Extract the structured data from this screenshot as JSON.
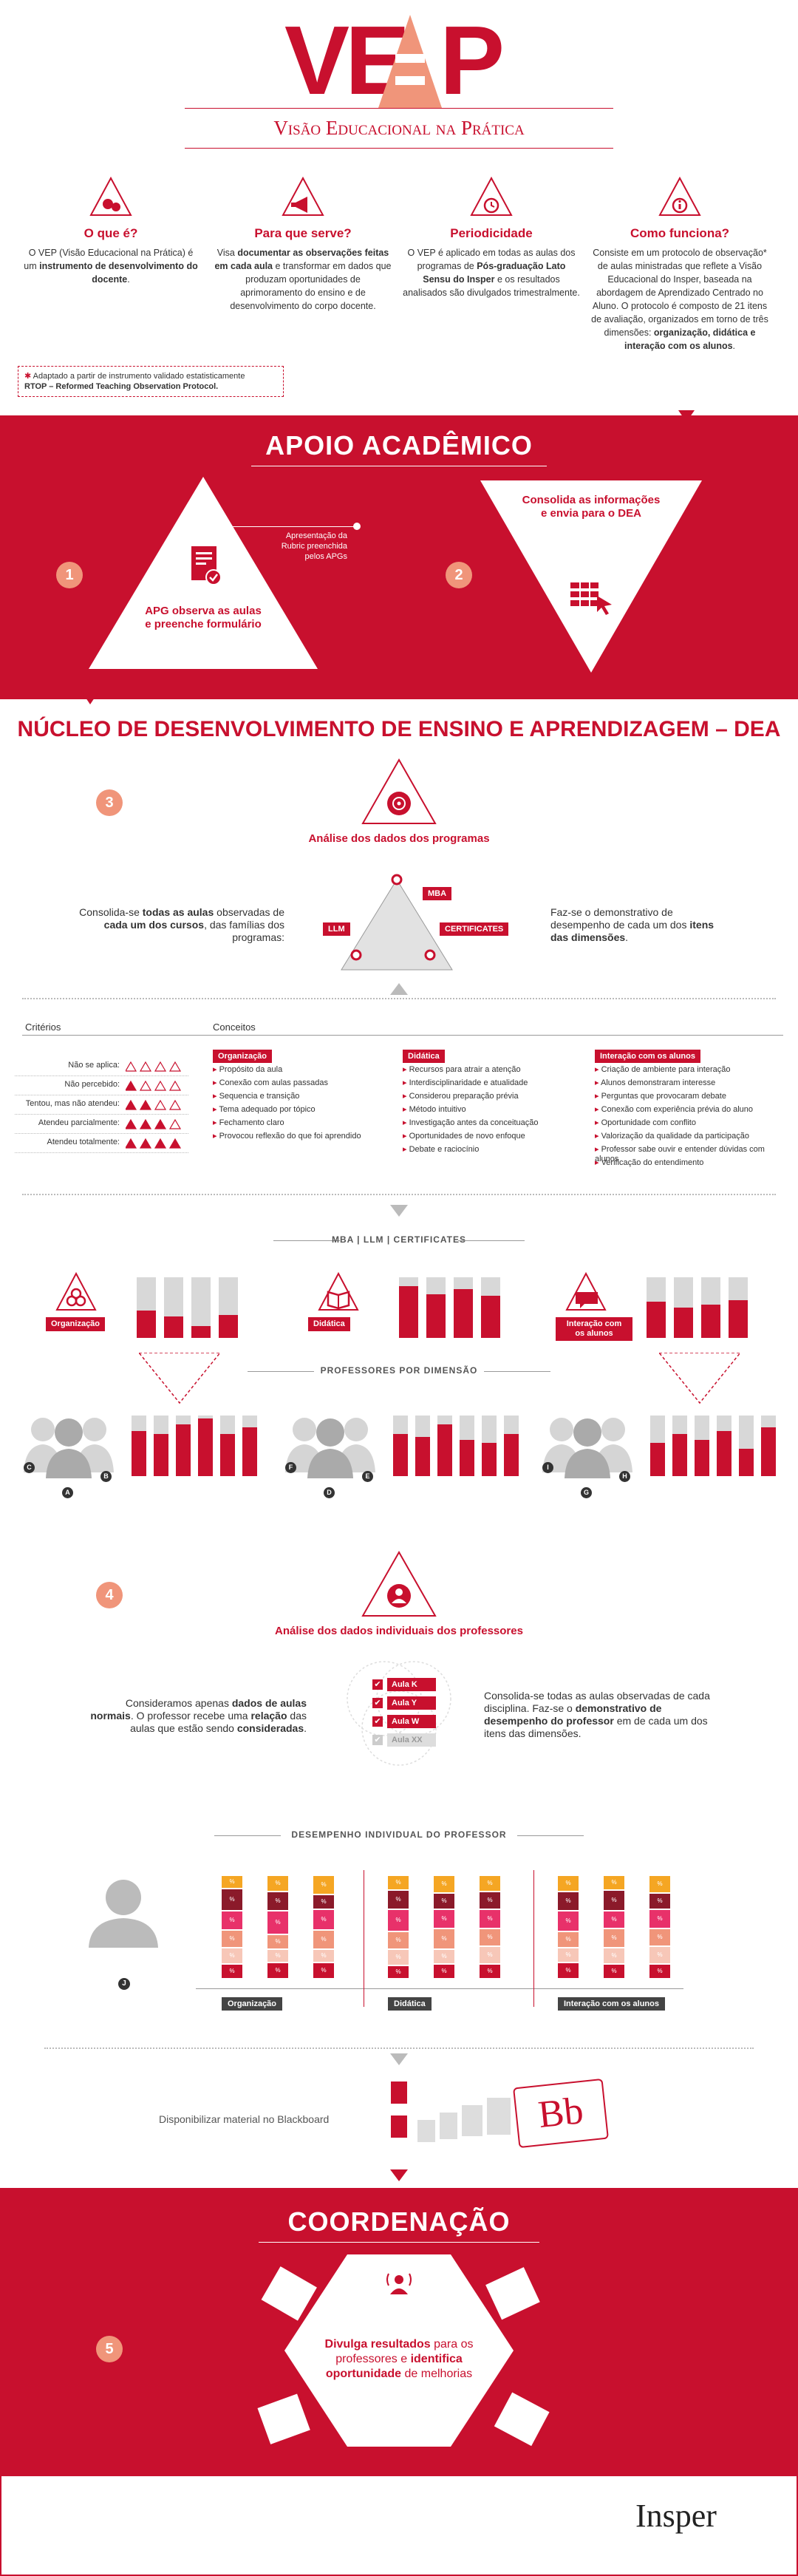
{
  "logo": {
    "letters_left": "VE",
    "letter_p": "P",
    "subtitle": "Visão Educacional na Prática"
  },
  "intro": [
    {
      "title": "O que é?",
      "text_pre": "O VEP (Visão Educacional na Prática) é um ",
      "text_bold": "instrumento de desenvolvimento do docente",
      "text_post": "."
    },
    {
      "title": "Para que serve?",
      "text_pre": "Visa ",
      "text_bold": "documentar as observações feitas em cada aula",
      "text_post": " e transformar em dados que produzam oportunidades de aprimoramento do ensino e de desenvolvimento do corpo docente."
    },
    {
      "title": "Periodicidade",
      "text_pre": "O VEP é aplicado em todas as aulas dos programas de ",
      "text_bold": "Pós-graduação Lato Sensu do Insper",
      "text_post": " e os resultados analisados são divulgados trimestralmente."
    },
    {
      "title": "Como funciona?",
      "text_pre": "Consiste em um protocolo de observação* de aulas ministradas que reflete a Visão Educacional do Insper, baseada na abordagem de Aprendizado Centrado no Aluno. O protocolo é composto de 21 itens de avaliação, organizados em torno de três dimensões: ",
      "text_bold": "organização, didática e interação com os alunos",
      "text_post": "."
    }
  ],
  "footnote": {
    "line1": "Adaptado a partir de instrumento validado estatisticamente",
    "line2": "RTOP – Reformed Teaching Observation Protocol."
  },
  "apoio": {
    "title": "Apoio Acadêmico",
    "step1_note": "Apresentação da Rubric preenchida pelos APGs",
    "step1_text": "APG observa as aulas e preenche formulário",
    "step2_text": "Consolida as informações e envia para o DEA",
    "n1": "1",
    "n2": "2"
  },
  "dea": {
    "title": "Núcleo de Desenvolvimento de Ensino e Aprendizagem – ",
    "title_bold": "DEA",
    "n3": "3",
    "step3_title": "Análise dos dados dos programas",
    "left_text_pre": "Consolida-se ",
    "left_text_bold": "todas as aulas",
    "left_text_mid": " observadas de ",
    "left_text_bold2": "cada um dos cursos",
    "left_text_post": ", das famílias dos programas:",
    "right_text_pre": "Faz-se o demonstrativo de desempenho de cada um dos ",
    "right_text_bold": "itens das dimensões",
    "right_text_post": ".",
    "tag_mba": "MBA",
    "tag_llm": "LLM",
    "tag_cert": "CERTIFICATES"
  },
  "criteria": {
    "header": "Critérios",
    "rows": [
      "Não se aplica:",
      "Não percebido:",
      "Tentou, mas não atendeu:",
      "Atendeu parcialmente:",
      "Atendeu totalmente:"
    ],
    "filled": [
      0,
      1,
      2,
      3,
      4
    ]
  },
  "concepts": {
    "header": "Conceitos",
    "columns": [
      {
        "name": "Organização",
        "items": [
          "Propósito da aula",
          "Conexão com aulas passadas",
          "Sequencia e transição",
          "Tema adequado por tópico",
          "Fechamento claro",
          "Provocou reflexão do que foi aprendido"
        ]
      },
      {
        "name": "Didática",
        "items": [
          "Recursos para atrair a atenção",
          "Interdisciplinaridade e atualidade",
          "Considerou preparação prévia",
          "Método intuitivo",
          "Investigação antes da conceituação",
          "Oportunidades de novo enfoque",
          "Debate e raciocínio"
        ]
      },
      {
        "name": "Interação com os alunos",
        "items": [
          "Criação de ambiente para interação",
          "Alunos demonstraram interesse",
          "Perguntas que provocaram debate",
          "Conexão com experiência prévia do aluno",
          "Oportunidade com conflito",
          "Valorização da qualidade da participação",
          "Professor sabe ouvir e entender dúvidas com alunos",
          "Verificação do entendimento"
        ]
      }
    ]
  },
  "programs_header": "MBA | LLM | CERTIFICATES",
  "dims": [
    {
      "label": "Organização",
      "icon": "gears-icon",
      "bars": [
        0.45,
        0.35,
        0.2,
        0.38
      ]
    },
    {
      "label": "Didática",
      "icon": "book-icon",
      "bars": [
        0.85,
        0.72,
        0.8,
        0.7
      ]
    },
    {
      "label": "Interação com os alunos",
      "icon": "chat-icon",
      "bars": [
        0.6,
        0.5,
        0.55,
        0.62
      ]
    }
  ],
  "prof_header": "Professores por dimensão",
  "prof_groups": [
    {
      "labels": [
        "C",
        "A",
        "B"
      ],
      "bars": [
        0.75,
        0.7,
        0.85,
        0.95,
        0.7,
        0.8
      ]
    },
    {
      "labels": [
        "F",
        "D",
        "E"
      ],
      "bars": [
        0.7,
        0.65,
        0.85,
        0.6,
        0.55,
        0.7
      ]
    },
    {
      "labels": [
        "I",
        "G",
        "H"
      ],
      "bars": [
        0.55,
        0.7,
        0.6,
        0.75,
        0.45,
        0.8
      ]
    }
  ],
  "step4": {
    "n4": "4",
    "title": "Análise dos dados individuais dos professores",
    "left_pre": "Consideramos apenas ",
    "left_bold": "dados de aulas normais",
    "left_mid": ". O professor recebe uma ",
    "left_bold2": "relação",
    "left_post": " das aulas que estão sendo ",
    "left_bold3": "consideradas",
    "left_end": ".",
    "right_pre": "Consolida-se todas as aulas observadas de cada disciplina. Faz-se o ",
    "right_bold": "demonstrativo de desempenho do professor",
    "right_post": " em de cada um dos itens das dimensões.",
    "checks": [
      "Aula K",
      "Aula Y",
      "Aula W",
      "Aula XX"
    ]
  },
  "individual": {
    "header": "Desempenho individual do professor",
    "person": "J",
    "groups": [
      "Organização",
      "Didática",
      "Interação com os alunos"
    ],
    "seg_label": "%"
  },
  "blackboard": {
    "text": "Disponibilizar material no Blackboard",
    "logo": "Bb"
  },
  "coord": {
    "title": "Coordenação",
    "n5": "5",
    "text_bold": "Divulga resultados",
    "text_mid": " para os professores e ",
    "text_bold2": "identifica oportunidade",
    "text_post": " de melhorias"
  },
  "brand": "Insper",
  "colors": {
    "accent": "#c8102e",
    "salmon": "#f0957a",
    "amber": "#f5a623",
    "pink": "#e8316a",
    "dark_red": "#8b1a2a"
  }
}
